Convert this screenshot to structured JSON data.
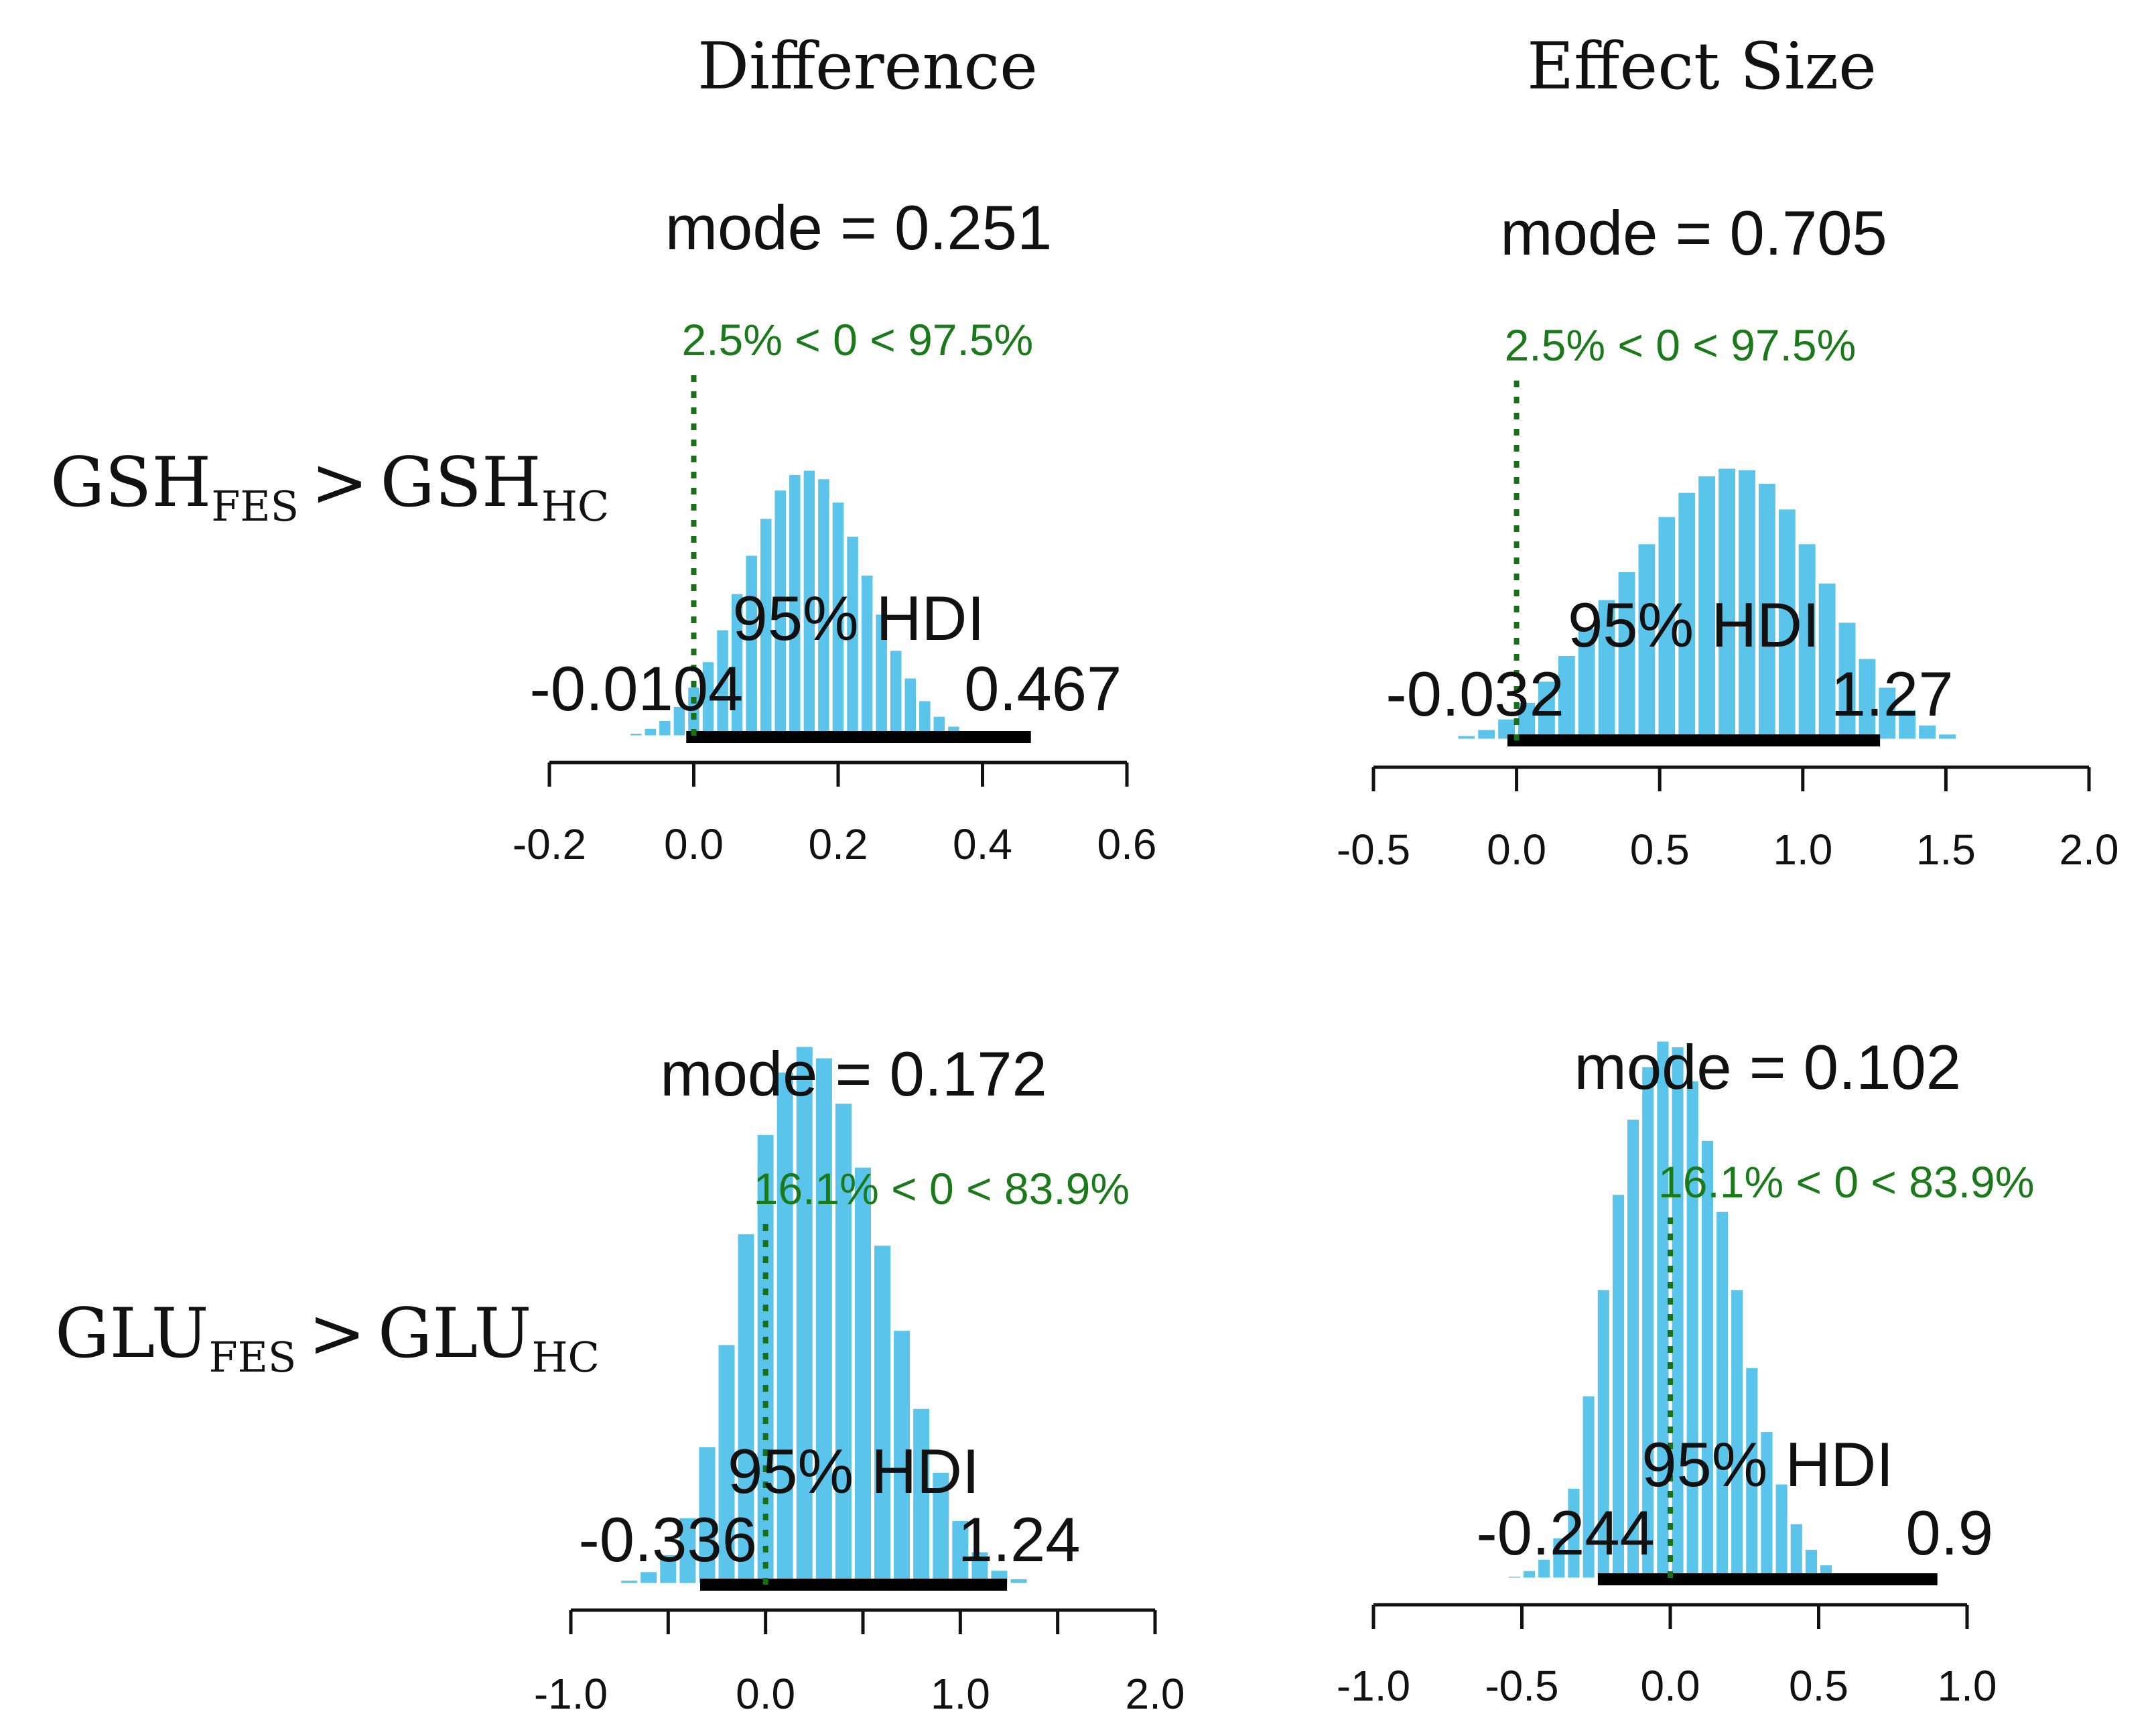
{
  "column_titles": [
    "Difference",
    "Effect Size"
  ],
  "row_labels": [
    {
      "left_main": "GSH",
      "left_sub": "FES",
      "operator": ">",
      "right_main": "GSH",
      "right_sub": "HC"
    },
    {
      "left_main": "GLU",
      "left_sub": "FES",
      "operator": ">",
      "right_main": "GLU",
      "right_sub": "HC"
    }
  ],
  "bar_color": "#5bc4ea",
  "comp_color": "#1a7a1a",
  "chart_data": [
    {
      "type": "bar",
      "title": "mode = 0.251",
      "mode": 0.251,
      "hdi_label": "95% HDI",
      "hdi": [
        -0.0104,
        0.467
      ],
      "hdi_labels": [
        "-0.0104",
        "0.467"
      ],
      "comp_value": 0,
      "comp_label": "2.5% < 0 < 97.5%",
      "xlim": [
        -0.2,
        0.6
      ],
      "ticks": [
        -0.2,
        0.0,
        0.2,
        0.4,
        0.6
      ],
      "tick_labels": [
        "-0.2",
        "0.0",
        "0.2",
        "0.4",
        "0.6"
      ],
      "bin_start": -0.13,
      "bin_width": 0.02,
      "values": [
        1,
        3,
        7,
        14,
        25,
        45,
        72,
        108,
        153,
        204,
        258,
        310,
        350,
        372,
        378,
        366,
        333,
        285,
        230,
        175,
        124,
        85,
        53,
        31,
        17,
        9,
        4,
        2
      ]
    },
    {
      "type": "bar",
      "title": "mode = 0.705",
      "mode": 0.705,
      "hdi_label": "95% HDI",
      "hdi": [
        -0.032,
        1.27
      ],
      "hdi_labels": [
        "-0.032",
        "1.27"
      ],
      "comp_value": 0,
      "comp_label": "2.5% < 0 < 97.5%",
      "xlim": [
        -0.5,
        2.0
      ],
      "ticks": [
        -0.5,
        0.0,
        0.5,
        1.0,
        1.5,
        2.0
      ],
      "tick_labels": [
        "-0.5",
        "0.0",
        "0.5",
        "1.0",
        "1.5",
        "2.0"
      ],
      "bin_start": -0.35,
      "bin_width": 0.07,
      "values": [
        1,
        3,
        8,
        16,
        30,
        52,
        80,
        114,
        150,
        188,
        225,
        262,
        298,
        330,
        352,
        362,
        360,
        342,
        308,
        262,
        210,
        158,
        110,
        72,
        42,
        22,
        10,
        4,
        1,
        0,
        2
      ]
    },
    {
      "type": "bar",
      "title": "mode = 0.172",
      "mode": 0.172,
      "hdi_label": "95% HDI",
      "hdi": [
        -0.336,
        1.24
      ],
      "hdi_labels": [
        "-0.336",
        "1.24"
      ],
      "comp_value": 0,
      "comp_label": "16.1% < 0 < 83.9%",
      "xlim": [
        -1.0,
        2.0
      ],
      "ticks": [
        -1.0,
        -0.5,
        0.0,
        0.5,
        1.0,
        1.5,
        2.0
      ],
      "tick_labels": [
        "-1.0",
        "",
        "0.0",
        "",
        "1.0",
        "",
        "2.0"
      ],
      "bin_start": -0.85,
      "bin_width": 0.1,
      "values": [
        1,
        4,
        10,
        22,
        48,
        98,
        170,
        248,
        318,
        362,
        380,
        372,
        340,
        295,
        240,
        180,
        125,
        80,
        46,
        24,
        11,
        5,
        2,
        1
      ]
    },
    {
      "type": "bar",
      "title": "mode = 0.102",
      "mode": 0.102,
      "hdi_label": "95% HDI",
      "hdi": [
        -0.244,
        0.9
      ],
      "hdi_labels": [
        "-0.244",
        "0.9"
      ],
      "comp_value": 0,
      "comp_label": "16.1% < 0 < 83.9%",
      "xlim": [
        -1.0,
        1.0
      ],
      "ticks": [
        -1.0,
        -0.5,
        0.0,
        0.5,
        1.0
      ],
      "tick_labels": [
        "-1.0",
        "-0.5",
        "0.0",
        "0.5",
        "1.0"
      ],
      "bin_start": -0.6,
      "bin_width": 0.05,
      "values": [
        1,
        3,
        7,
        15,
        30,
        65,
        130,
        205,
        272,
        325,
        362,
        380,
        376,
        352,
        310,
        260,
        205,
        150,
        105,
        68,
        40,
        22,
        11,
        5,
        2,
        1
      ]
    }
  ]
}
